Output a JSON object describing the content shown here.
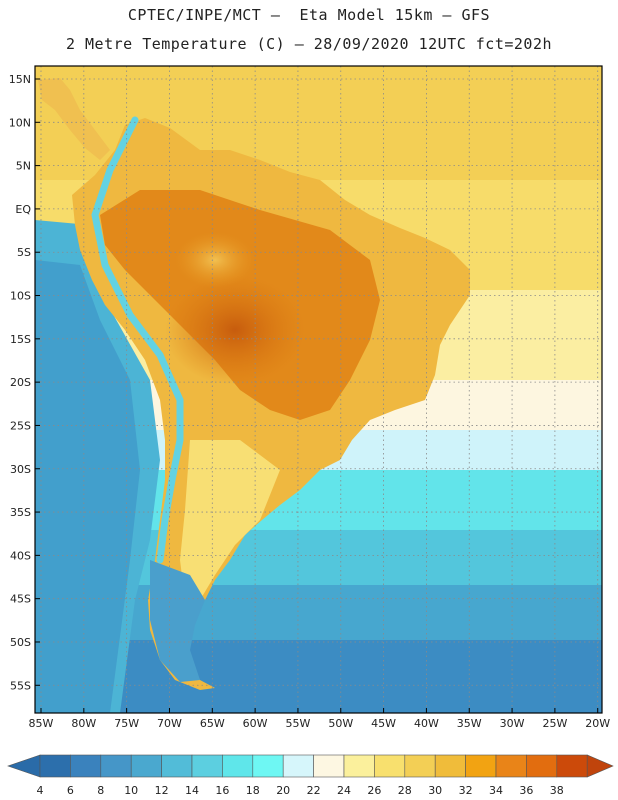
{
  "title_line1": "CPTEC/INPE/MCT –  Eta Model 15km – GFS",
  "title_line2": "2 Metre Temperature (C) – 28/09/2020 12UTC fct=202h",
  "lat_ticks": [
    {
      "lat": 15,
      "label": "15N"
    },
    {
      "lat": 10,
      "label": "10N"
    },
    {
      "lat": 5,
      "label": "5N"
    },
    {
      "lat": 0,
      "label": "EQ"
    },
    {
      "lat": -5,
      "label": "5S"
    },
    {
      "lat": -10,
      "label": "10S"
    },
    {
      "lat": -15,
      "label": "15S"
    },
    {
      "lat": -20,
      "label": "20S"
    },
    {
      "lat": -25,
      "label": "25S"
    },
    {
      "lat": -30,
      "label": "30S"
    },
    {
      "lat": -35,
      "label": "35S"
    },
    {
      "lat": -40,
      "label": "40S"
    },
    {
      "lat": -45,
      "label": "45S"
    },
    {
      "lat": -50,
      "label": "50S"
    },
    {
      "lat": -55,
      "label": "55S"
    }
  ],
  "lon_ticks": [
    {
      "lon": -85,
      "label": "85W"
    },
    {
      "lon": -80,
      "label": "80W"
    },
    {
      "lon": -75,
      "label": "75W"
    },
    {
      "lon": -70,
      "label": "70W"
    },
    {
      "lon": -65,
      "label": "65W"
    },
    {
      "lon": -60,
      "label": "60W"
    },
    {
      "lon": -55,
      "label": "55W"
    },
    {
      "lon": -50,
      "label": "50W"
    },
    {
      "lon": -45,
      "label": "45W"
    },
    {
      "lon": -40,
      "label": "40W"
    },
    {
      "lon": -35,
      "label": "35W"
    },
    {
      "lon": -30,
      "label": "30W"
    },
    {
      "lon": -25,
      "label": "25W"
    },
    {
      "lon": -20,
      "label": "20W"
    }
  ],
  "extent": {
    "lon_min": -85.7,
    "lon_max": -19.5,
    "lat_min": -58.2,
    "lat_max": 16.5
  },
  "colorbar": {
    "labels": [
      "4",
      "6",
      "8",
      "10",
      "12",
      "14",
      "16",
      "18",
      "20",
      "22",
      "24",
      "26",
      "28",
      "30",
      "32",
      "34",
      "36",
      "38"
    ],
    "colors": [
      "#2c6fac",
      "#3a82bd",
      "#4596c8",
      "#4aa8cf",
      "#52bcd8",
      "#5ccfe0",
      "#5fe6ea",
      "#6ef7f3",
      "#d6f6fb",
      "#fdf7e2",
      "#fbf09c",
      "#f8e06e",
      "#f3cf55",
      "#f0bc3a",
      "#f2a312",
      "#e98418",
      "#e26d0f",
      "#cc4a0a"
    ],
    "under_color": "#2a6ba8",
    "over_color": "#c0440c"
  }
}
